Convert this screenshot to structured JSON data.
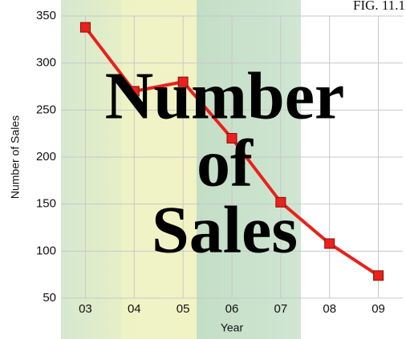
{
  "chart_data": {
    "type": "line",
    "title": [
      "Number",
      "of",
      "Sales"
    ],
    "figure_label": "FIG. 11.1",
    "x_label": "Year",
    "y_label": "Number of Sales",
    "categories": [
      "03",
      "04",
      "05",
      "06",
      "07",
      "08",
      "09"
    ],
    "series": [
      {
        "name": "Number of Sales",
        "color": "#e8221c",
        "values": [
          338,
          270,
          280,
          220,
          152,
          108,
          74
        ]
      }
    ],
    "ylim": [
      50,
      350
    ],
    "yticks": [
      50,
      100,
      150,
      200,
      250,
      300,
      350
    ],
    "grid": true
  }
}
